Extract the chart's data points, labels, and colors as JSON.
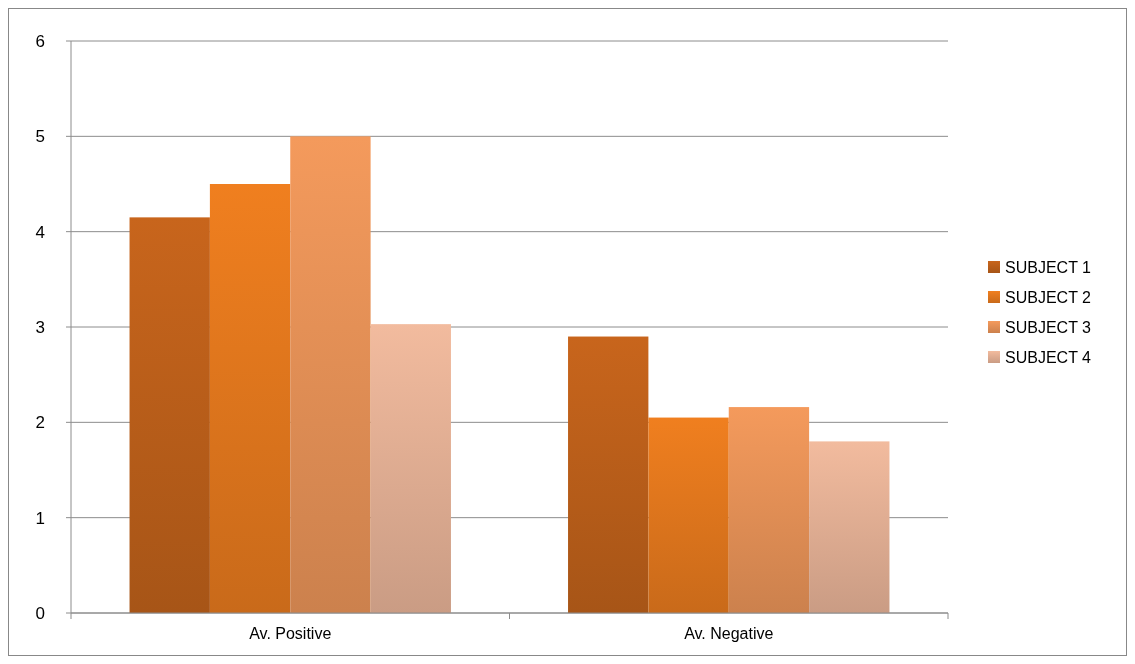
{
  "chart_data": {
    "type": "bar",
    "categories": [
      "Av. Positive",
      "Av. Negative"
    ],
    "series": [
      {
        "name": "SUBJECT 1",
        "color": "#c8651c",
        "values": [
          4.15,
          2.9
        ]
      },
      {
        "name": "SUBJECT 2",
        "color": "#f07f1f",
        "values": [
          4.5,
          2.05
        ]
      },
      {
        "name": "SUBJECT 3",
        "color": "#f49a5c",
        "values": [
          5.0,
          2.16
        ]
      },
      {
        "name": "SUBJECT 4",
        "color": "#f2bb9e",
        "values": [
          3.03,
          1.8
        ]
      }
    ],
    "ylim": [
      0,
      6
    ],
    "yticks": [
      0,
      1,
      2,
      3,
      4,
      5,
      6
    ],
    "grid": "y",
    "legend": "right"
  }
}
